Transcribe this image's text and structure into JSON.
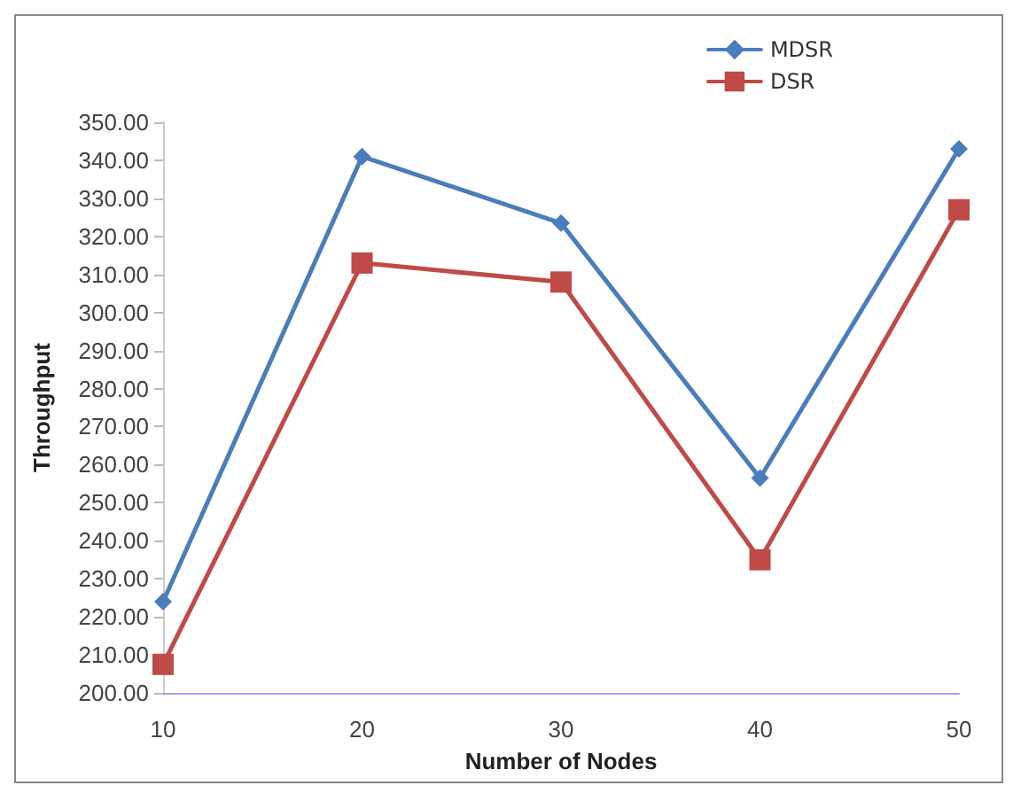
{
  "chart_data": {
    "type": "line",
    "xlabel": "Number of Nodes",
    "ylabel": "Throughput",
    "categories": [
      "10",
      "20",
      "30",
      "40",
      "50"
    ],
    "series": [
      {
        "name": "MDSR",
        "color": "#4a7ebb",
        "marker": "diamond",
        "values": [
          224,
          341,
          323.5,
          256.5,
          343
        ]
      },
      {
        "name": "DSR",
        "color": "#be4b48",
        "marker": "square",
        "values": [
          207.5,
          313,
          308,
          235,
          327
        ]
      }
    ],
    "ylim": [
      200,
      350
    ],
    "yticks": [
      {
        "value": 200,
        "label": "200.00"
      },
      {
        "value": 210,
        "label": "210.00"
      },
      {
        "value": 220,
        "label": "220.00"
      },
      {
        "value": 230,
        "label": "230.00"
      },
      {
        "value": 240,
        "label": "240.00"
      },
      {
        "value": 250,
        "label": "250.00"
      },
      {
        "value": 260,
        "label": "260.00"
      },
      {
        "value": 270,
        "label": "270.00"
      },
      {
        "value": 280,
        "label": "280.00"
      },
      {
        "value": 290,
        "label": "290.00"
      },
      {
        "value": 300,
        "label": "300.00"
      },
      {
        "value": 310,
        "label": "310.00"
      },
      {
        "value": 320,
        "label": "320.00"
      },
      {
        "value": 330,
        "label": "330.00"
      },
      {
        "value": 340,
        "label": "340.00"
      },
      {
        "value": 350,
        "label": "350.00"
      }
    ],
    "grid": false,
    "legend": "top right"
  }
}
